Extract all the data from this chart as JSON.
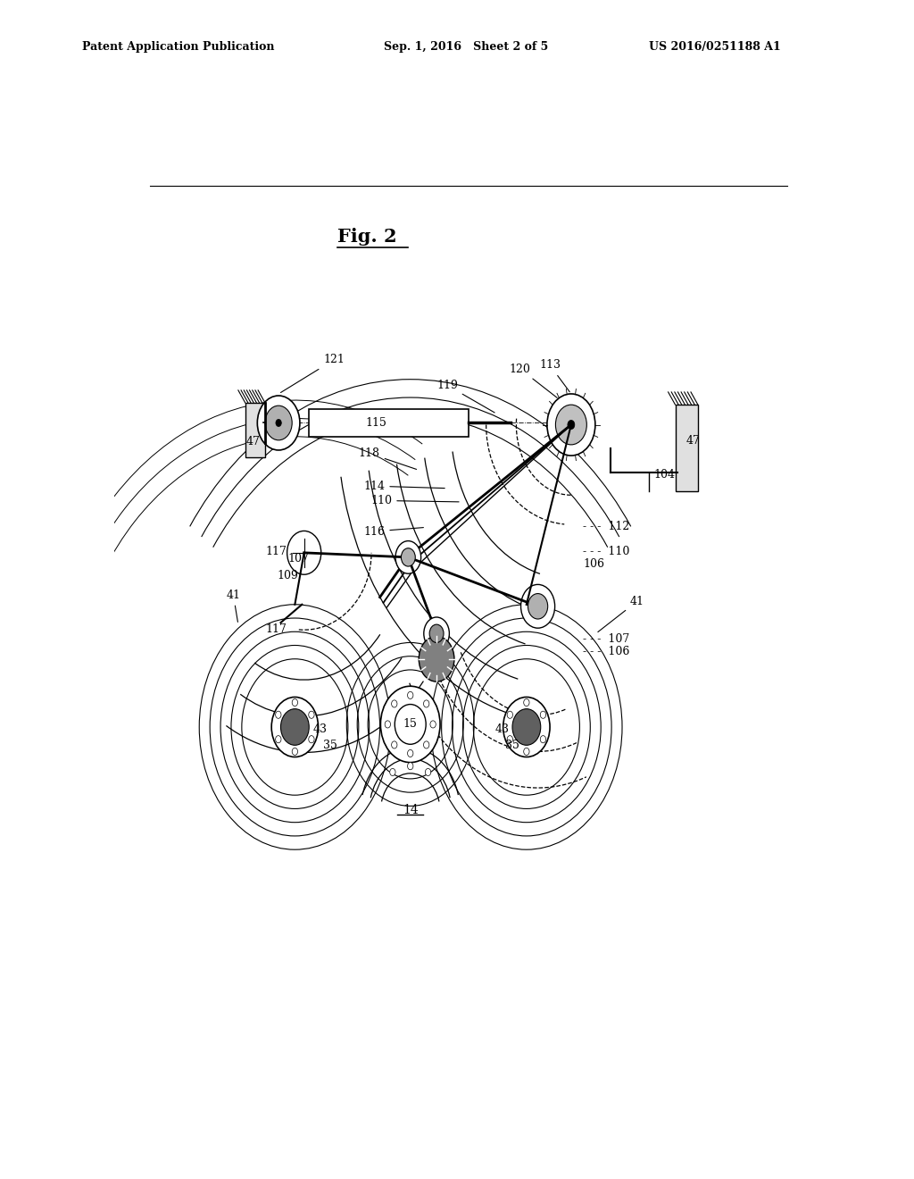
{
  "title": "Fig. 2",
  "header_left": "Patent Application Publication",
  "header_center": "Sep. 1, 2016   Sheet 2 of 5",
  "header_right": "US 2016/0251188 A1",
  "bg_color": "#ffffff",
  "line_color": "#000000"
}
